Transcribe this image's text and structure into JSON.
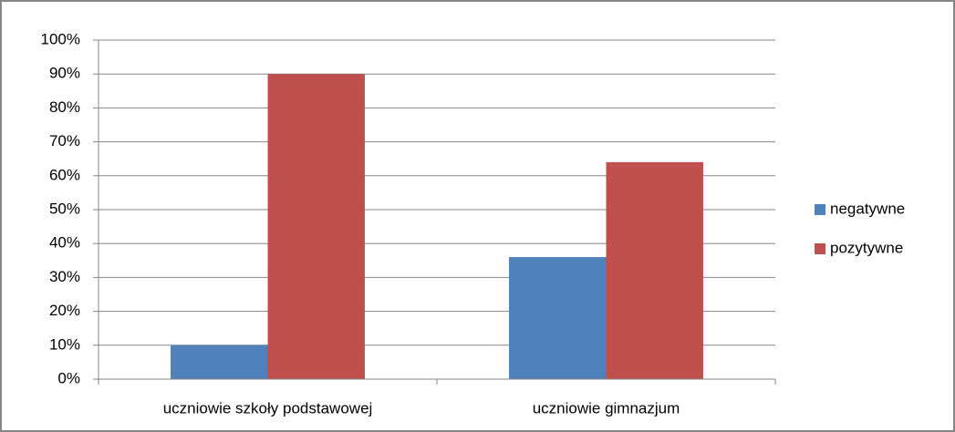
{
  "chart_data": {
    "type": "bar",
    "categories": [
      "uczniowie szkoły podstawowej",
      "uczniowie gimnazjum"
    ],
    "series": [
      {
        "name": "negatywne",
        "color": "#4f81bd",
        "values": [
          10,
          36
        ]
      },
      {
        "name": "pozytywne",
        "color": "#c0504d",
        "values": [
          90,
          64
        ]
      }
    ],
    "ylim": [
      0,
      100
    ],
    "yticks": [
      {
        "value": 0,
        "label": "0%"
      },
      {
        "value": 10,
        "label": "10%"
      },
      {
        "value": 20,
        "label": "20%"
      },
      {
        "value": 30,
        "label": "30%"
      },
      {
        "value": 40,
        "label": "40%"
      },
      {
        "value": 50,
        "label": "50%"
      },
      {
        "value": 60,
        "label": "60%"
      },
      {
        "value": 70,
        "label": "70%"
      },
      {
        "value": 80,
        "label": "80%"
      },
      {
        "value": 90,
        "label": "90%"
      },
      {
        "value": 100,
        "label": "100%"
      }
    ],
    "grid": true,
    "legend": "right"
  }
}
